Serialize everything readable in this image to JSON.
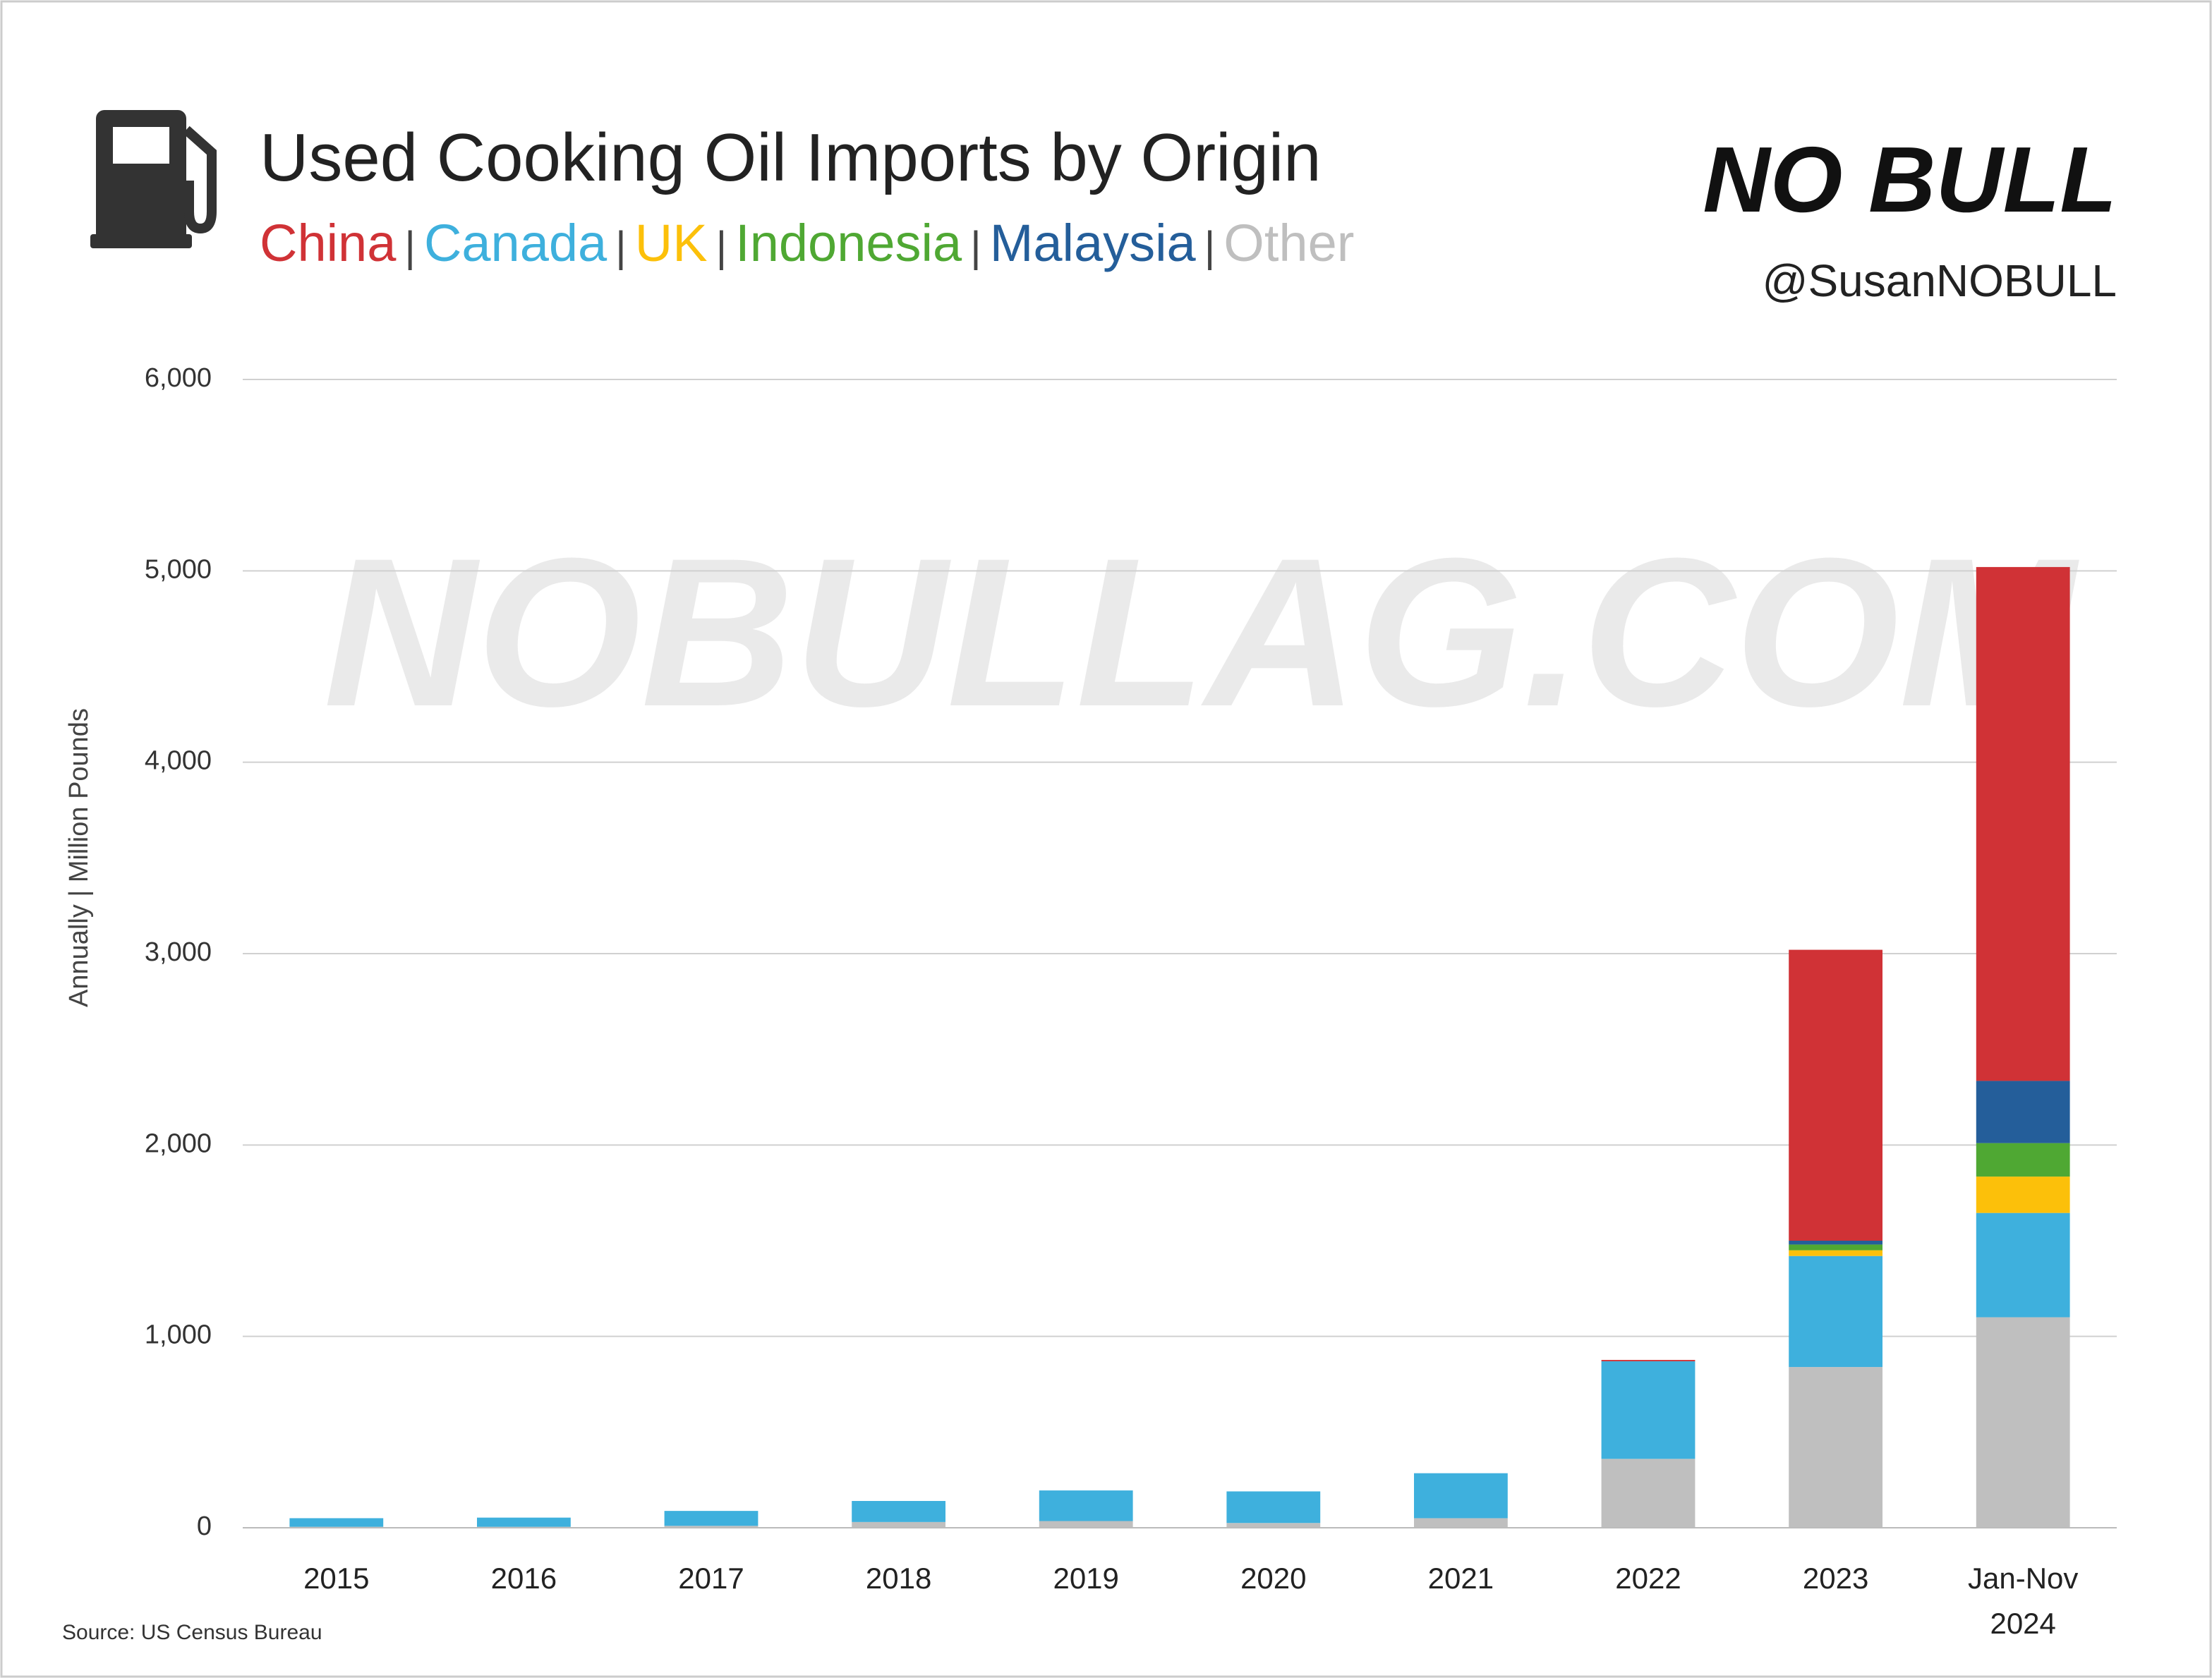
{
  "chart_data": {
    "type": "stacked_bar",
    "title": "Used Cooking Oil Imports by Origin",
    "legend_separator": "|",
    "handle": "@SusanNOBULL",
    "logo": "NO BULL",
    "watermark": "NOBULLAG.COM",
    "ylabel": "Annually  |  Million Pounds",
    "source": "Source:  US Census Bureau",
    "categories": [
      "2015",
      "2016",
      "2017",
      "2018",
      "2019",
      "2020",
      "2021",
      "2022",
      "2023",
      "Jan-Nov 2024"
    ],
    "series": [
      {
        "name": "Other",
        "color": "#bfbfbf",
        "values": [
          5,
          5,
          10,
          30,
          35,
          25,
          50,
          360,
          840,
          1100
        ]
      },
      {
        "name": "Canada",
        "color": "#3eb0dd",
        "values": [
          45,
          48,
          78,
          110,
          160,
          165,
          235,
          510,
          580,
          545
        ]
      },
      {
        "name": "UK",
        "color": "#fcc00a",
        "values": [
          0,
          0,
          0,
          0,
          0,
          0,
          0,
          0,
          30,
          190
        ]
      },
      {
        "name": "Indonesia",
        "color": "#4fa833",
        "values": [
          0,
          0,
          0,
          0,
          0,
          0,
          0,
          0,
          30,
          175
        ]
      },
      {
        "name": "Malaysia",
        "color": "#245e9a",
        "values": [
          0,
          0,
          0,
          0,
          0,
          0,
          0,
          0,
          20,
          325
        ]
      },
      {
        "name": "China",
        "color": "#d03236",
        "values": [
          0,
          0,
          0,
          0,
          0,
          0,
          0,
          7,
          1520,
          2685
        ]
      }
    ],
    "legend_order": [
      "China",
      "Canada",
      "UK",
      "Indonesia",
      "Malaysia",
      "Other"
    ],
    "ylim": [
      0,
      6000
    ],
    "yticks": [
      0,
      {
        "value": 1000,
        "label": "1,000"
      },
      {
        "value": 2000,
        "label": "2,000"
      },
      {
        "value": 3000,
        "label": "3,000"
      },
      {
        "value": 4000,
        "label": "4,000"
      },
      {
        "value": 5000,
        "label": "5,000"
      },
      {
        "value": 6000,
        "label": "6,000"
      }
    ],
    "grid": true
  }
}
